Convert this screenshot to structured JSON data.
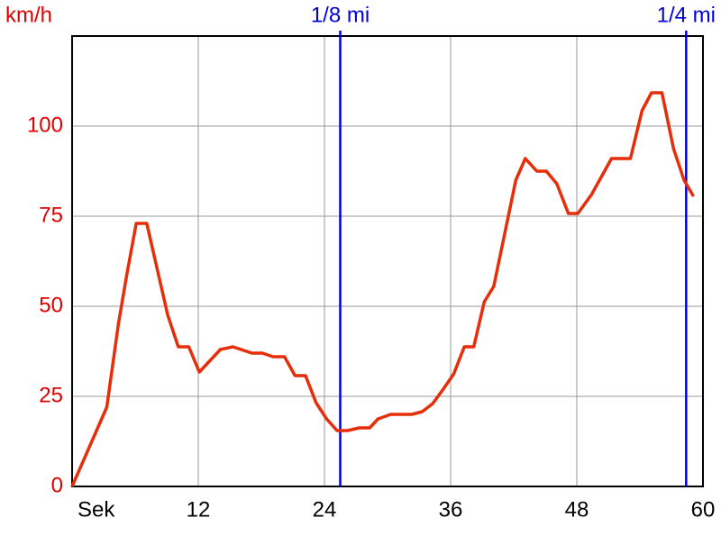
{
  "chart_data": {
    "type": "line",
    "y_label": "km/h",
    "x_label": "Sek",
    "xlim": [
      0,
      60
    ],
    "xticks": [
      12,
      24,
      36,
      48,
      60
    ],
    "ylim": [
      0,
      125
    ],
    "yticks": [
      0,
      25,
      50,
      75,
      100
    ],
    "grid": true,
    "markers": [
      {
        "label": "1/8 mi",
        "x": 25.5,
        "color": "#0000dd"
      },
      {
        "label": "1/4 mi",
        "x": 58.4,
        "color": "#0000dd"
      }
    ],
    "x": [
      0,
      3.3,
      4.4,
      5.2,
      6.1,
      7.1,
      9.1,
      10.1,
      11.1,
      12.1,
      14.1,
      15.3,
      17.1,
      18.1,
      19.1,
      20.2,
      21.2,
      22.2,
      23.2,
      24.2,
      25.2,
      26.2,
      27.3,
      28.3,
      29.1,
      30.3,
      32.3,
      33.3,
      34.3,
      35.3,
      36.3,
      37.3,
      38.2,
      39.2,
      40.1,
      42.2,
      43.1,
      44.2,
      45.1,
      46.1,
      47.2,
      48.1,
      49.4,
      51.3,
      53.1,
      54.2,
      55.1,
      56.1,
      57.2,
      58.2,
      59.1
    ],
    "series": [
      {
        "color": "#e62e0a",
        "values": [
          0,
          22,
          45,
          58.75,
          73,
          73,
          47.5,
          38.75,
          38.75,
          31.75,
          38,
          38.75,
          37,
          37,
          36,
          36,
          30.75,
          30.75,
          23.25,
          18.75,
          15.5,
          15.5,
          16.25,
          16.25,
          18.75,
          20,
          20,
          20.75,
          23,
          27,
          31.25,
          38.75,
          38.75,
          51.25,
          55.5,
          85,
          91,
          87.5,
          87.5,
          84,
          75.75,
          75.75,
          81,
          91,
          91,
          104.25,
          109.25,
          109.25,
          93.75,
          85,
          80.5
        ]
      }
    ]
  }
}
